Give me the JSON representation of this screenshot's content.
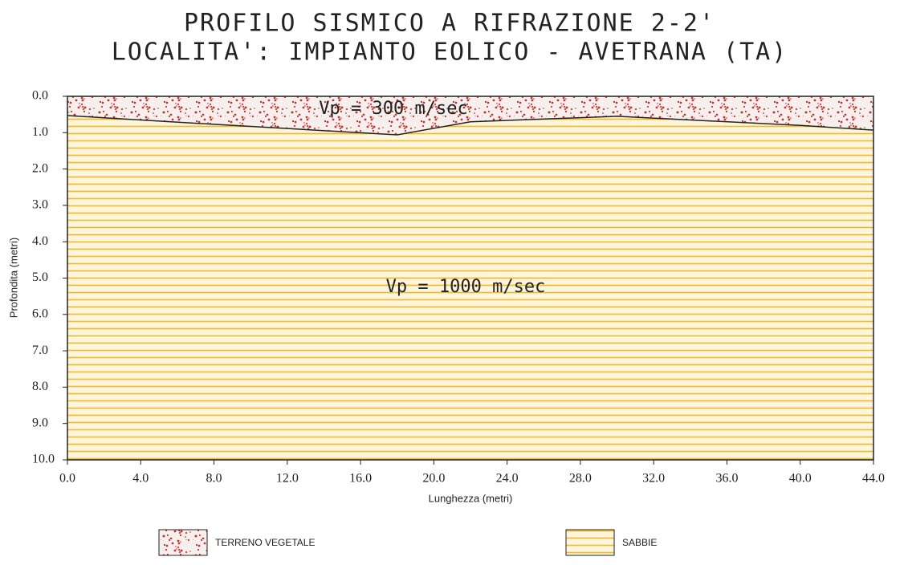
{
  "chart_data": {
    "type": "profile",
    "title": "PROFILO SISMICO A RIFRAZIONE 2-2'",
    "subtitle": "LOCALITA': IMPIANTO EOLICO - AVETRANA (TA)",
    "x_label": "Lunghezza (metri)",
    "y_label": "Profondita (metri)",
    "xlim": [
      0,
      44
    ],
    "ylim": [
      0,
      10
    ],
    "y_reversed": true,
    "xticks": [
      {
        "value": 0,
        "label": "0.0"
      },
      {
        "value": 4,
        "label": "4.0"
      },
      {
        "value": 8,
        "label": "8.0"
      },
      {
        "value": 12,
        "label": "12.0"
      },
      {
        "value": 16,
        "label": "16.0"
      },
      {
        "value": 20,
        "label": "20.0"
      },
      {
        "value": 24,
        "label": "24.0"
      },
      {
        "value": 28,
        "label": "28.0"
      },
      {
        "value": 32,
        "label": "32.0"
      },
      {
        "value": 36,
        "label": "36.0"
      },
      {
        "value": 40,
        "label": "40.0"
      },
      {
        "value": 44,
        "label": "44.0"
      }
    ],
    "yticks": [
      {
        "value": 0,
        "label": "0.0"
      },
      {
        "value": 1,
        "label": "1.0"
      },
      {
        "value": 2,
        "label": "2.0"
      },
      {
        "value": 3,
        "label": "3.0"
      },
      {
        "value": 4,
        "label": "4.0"
      },
      {
        "value": 5,
        "label": "5.0"
      },
      {
        "value": 6,
        "label": "6.0"
      },
      {
        "value": 7,
        "label": "7.0"
      },
      {
        "value": 8,
        "label": "8.0"
      },
      {
        "value": 9,
        "label": "9.0"
      },
      {
        "value": 10,
        "label": "10.0"
      }
    ],
    "boundary": {
      "x": [
        0,
        8,
        18,
        22,
        30,
        40,
        44
      ],
      "depths": [
        0.53,
        0.77,
        1.06,
        0.7,
        0.55,
        0.8,
        0.93
      ]
    },
    "layers": [
      {
        "name": "TERRENO VEGETALE",
        "label": "Vp = 300 m/sec",
        "color": "#c0392b"
      },
      {
        "name": "SABBIE",
        "label": "Vp = 1000 m/sec",
        "color": "#f0b82e"
      }
    ]
  }
}
